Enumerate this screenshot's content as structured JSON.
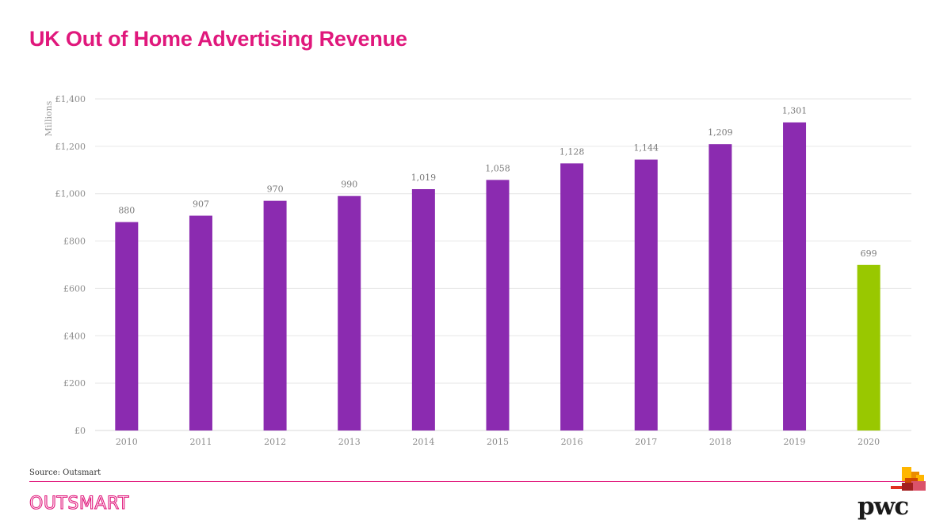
{
  "title": "UK Out of Home Advertising Revenue",
  "source": "Source: Outsmart",
  "footer": {
    "left_logo": "OUTSMART",
    "right_logo": "pwc"
  },
  "colors": {
    "title": "#e0187c",
    "bar_primary": "#8b2bb0",
    "bar_highlight": "#99c800",
    "divider": "#e0187c"
  },
  "chart_data": {
    "type": "bar",
    "categories": [
      "2010",
      "2011",
      "2012",
      "2013",
      "2014",
      "2015",
      "2016",
      "2017",
      "2018",
      "2019",
      "2020"
    ],
    "values": [
      880,
      907,
      970,
      990,
      1019,
      1058,
      1128,
      1144,
      1209,
      1301,
      699
    ],
    "value_labels": [
      "880",
      "907",
      "970",
      "990",
      "1,019",
      "1,058",
      "1,128",
      "1,144",
      "1,209",
      "1,301",
      "699"
    ],
    "highlight_category": "2020",
    "ylabel": "Millions",
    "ylim": [
      0,
      1400
    ],
    "yticks": [
      0,
      200,
      400,
      600,
      800,
      1000,
      1200,
      1400
    ],
    "ytick_labels": [
      "£0",
      "£200",
      "£400",
      "£600",
      "£800",
      "£1,000",
      "£1,200",
      "£1,400"
    ],
    "grid": true,
    "legend": "none"
  }
}
